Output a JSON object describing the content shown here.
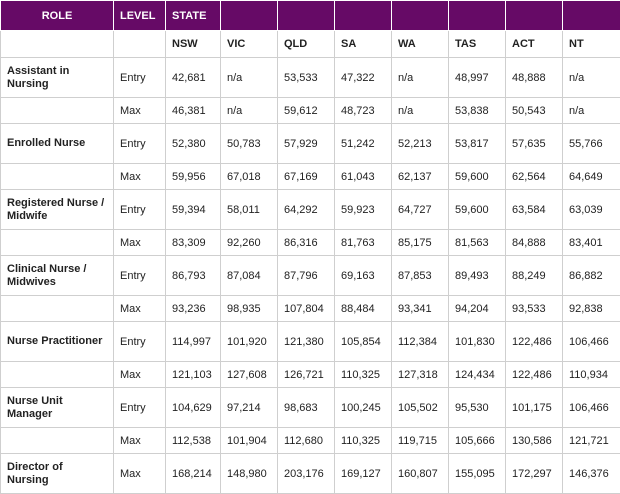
{
  "table": {
    "header": [
      "ROLE",
      "LEVEL",
      "STATE"
    ],
    "states": [
      "NSW",
      "VIC",
      "QLD",
      "SA",
      "WA",
      "TAS",
      "ACT",
      "NT"
    ],
    "roles": [
      {
        "name": "Assistant in Nursing",
        "levels": [
          {
            "level": "Entry",
            "values": [
              "42,681",
              "n/a",
              "53,533",
              "47,322",
              "n/a",
              "48,997",
              "48,888",
              "n/a"
            ]
          },
          {
            "level": "Max",
            "values": [
              "46,381",
              "n/a",
              "59,612",
              "48,723",
              "n/a",
              "53,838",
              "50,543",
              "n/a"
            ]
          }
        ]
      },
      {
        "name": "Enrolled Nurse",
        "levels": [
          {
            "level": "Entry",
            "values": [
              "52,380",
              "50,783",
              "57,929",
              "51,242",
              "52,213",
              "53,817",
              "57,635",
              "55,766"
            ]
          },
          {
            "level": "Max",
            "values": [
              "59,956",
              "67,018",
              "67,169",
              "61,043",
              "62,137",
              "59,600",
              "62,564",
              "64,649"
            ]
          }
        ]
      },
      {
        "name": "Registered Nurse / Midwife",
        "levels": [
          {
            "level": "Entry",
            "values": [
              "59,394",
              "58,011",
              "64,292",
              "59,923",
              "64,727",
              "59,600",
              "63,584",
              "63,039"
            ]
          },
          {
            "level": "Max",
            "values": [
              "83,309",
              "92,260",
              "86,316",
              "81,763",
              "85,175",
              "81,563",
              "84,888",
              "83,401"
            ]
          }
        ]
      },
      {
        "name": "Clinical Nurse / Midwives",
        "levels": [
          {
            "level": "Entry",
            "values": [
              "86,793",
              "87,084",
              "87,796",
              "69,163",
              "87,853",
              "89,493",
              "88,249",
              "86,882"
            ]
          },
          {
            "level": "Max",
            "values": [
              "93,236",
              "98,935",
              "107,804",
              "88,484",
              "93,341",
              "94,204",
              "93,533",
              "92,838"
            ]
          }
        ]
      },
      {
        "name": "Nurse Practitioner",
        "levels": [
          {
            "level": "Entry",
            "values": [
              "114,997",
              "101,920",
              "121,380",
              "105,854",
              "112,384",
              "101,830",
              "122,486",
              "106,466"
            ]
          },
          {
            "level": "Max",
            "values": [
              "121,103",
              "127,608",
              "126,721",
              "110,325",
              "127,318",
              "124,434",
              "122,486",
              "110,934"
            ]
          }
        ]
      },
      {
        "name": "Nurse Unit Manager",
        "levels": [
          {
            "level": "Entry",
            "values": [
              "104,629",
              "97,214",
              "98,683",
              "100,245",
              "105,502",
              "95,530",
              "101,175",
              "106,466"
            ]
          },
          {
            "level": "Max",
            "values": [
              "112,538",
              "101,904",
              "112,680",
              "110,325",
              "119,715",
              "105,666",
              "130,586",
              "121,721"
            ]
          }
        ]
      },
      {
        "name": "Director of Nursing",
        "levels": [
          {
            "level": "Max",
            "values": [
              "168,214",
              "148,980",
              "203,176",
              "169,127",
              "160,807",
              "155,095",
              "172,297",
              "146,376"
            ]
          }
        ]
      }
    ]
  }
}
